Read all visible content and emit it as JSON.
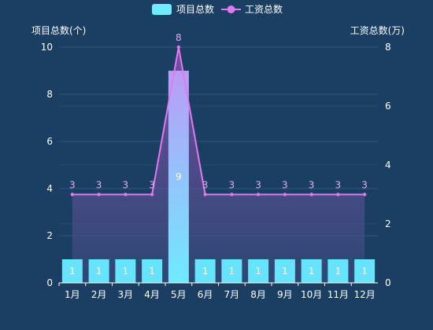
{
  "chart_data": {
    "type": "bar",
    "categories": [
      "1月",
      "2月",
      "3月",
      "4月",
      "5月",
      "6月",
      "7月",
      "8月",
      "9月",
      "10月",
      "11月",
      "12月"
    ],
    "series": [
      {
        "name": "项目总数",
        "type": "bar",
        "axis": "left",
        "values": [
          1,
          1,
          1,
          1,
          9,
          1,
          1,
          1,
          1,
          1,
          1,
          1
        ]
      },
      {
        "name": "工资总数",
        "type": "line",
        "axis": "right",
        "values": [
          3,
          3,
          3,
          3,
          8,
          3,
          3,
          3,
          3,
          3,
          3,
          3
        ]
      }
    ],
    "yaxis_left": {
      "label": "项目总数(个)",
      "range": [
        0,
        10
      ],
      "ticks": [
        0,
        2,
        4,
        6,
        8,
        10
      ]
    },
    "yaxis_right": {
      "label": "工资总数(万)",
      "range": [
        0,
        8
      ],
      "ticks": [
        0,
        2,
        4,
        6,
        8
      ]
    },
    "grid": true,
    "legend": "top-center",
    "colors": {
      "background": "#1b3f63",
      "bar_top": "#7ff3ff",
      "bar_bottom": "#67e4fb",
      "line": "#e07af0",
      "area_top": "#7a4fa3",
      "area_bottom": "#3a4a7a",
      "grid": "#2e5679",
      "text": "#ffffff"
    }
  }
}
